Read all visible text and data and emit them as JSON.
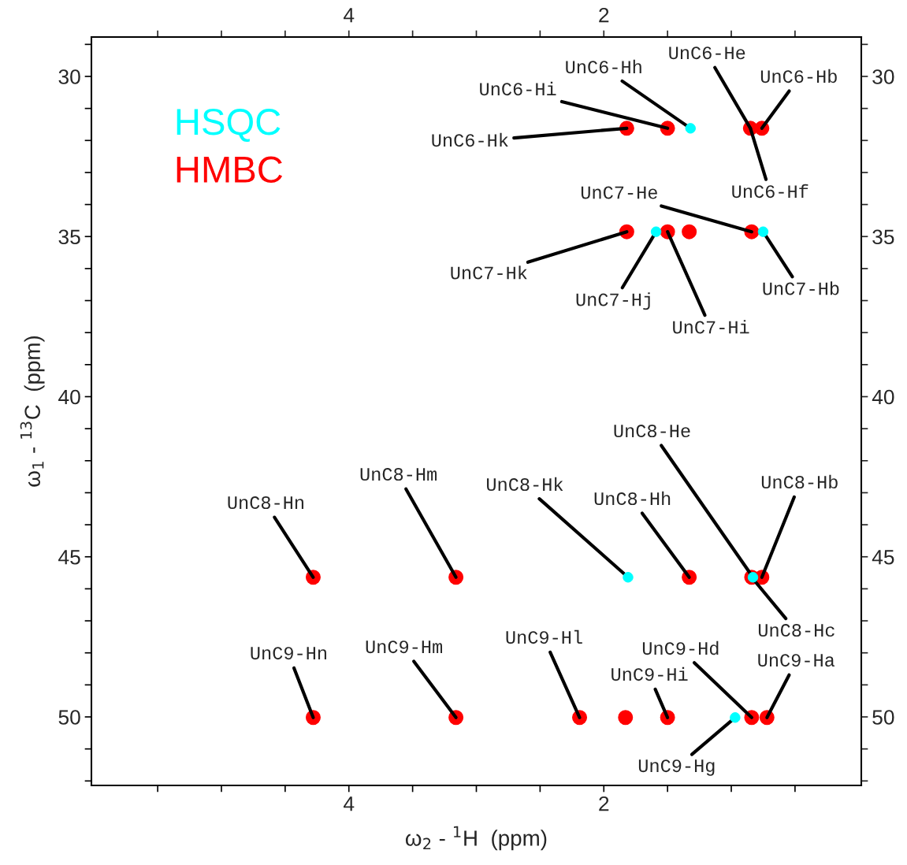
{
  "chart_data": {
    "type": "scatter",
    "xlabel": "ω$_{2}$ - $^{1}$H  (ppm)",
    "ylabel": "ω$_{1}$ - $^{13}$C  (ppm)",
    "xlim": [
      6.02,
      -0.02
    ],
    "ylim": [
      52.14,
      28.77
    ],
    "xticks": [
      {
        "value": 5.5,
        "label": null
      },
      {
        "value": 5,
        "label": null
      },
      {
        "value": 4.5,
        "label": null
      },
      4,
      {
        "value": 3.5,
        "label": null
      },
      {
        "value": 3,
        "label": null
      },
      {
        "value": 2.5,
        "label": null
      },
      2,
      {
        "value": 1.5,
        "label": null
      },
      {
        "value": 1,
        "label": null
      },
      {
        "value": 0.5,
        "label": null
      }
    ],
    "x2lim": [
      6.02,
      -0.02
    ],
    "x2ticks": [
      {
        "value": 5.5,
        "label": null
      },
      {
        "value": 5,
        "label": null
      },
      {
        "value": 4.5,
        "label": null
      },
      4,
      {
        "value": 3.5,
        "label": null
      },
      {
        "value": 3,
        "label": null
      },
      {
        "value": 2.5,
        "label": null
      },
      2,
      {
        "value": 1.5,
        "label": null
      },
      {
        "value": 1,
        "label": null
      },
      {
        "value": 0.5,
        "label": null
      }
    ],
    "yticks": [
      {
        "value": 29,
        "label": null
      },
      30,
      {
        "value": 31,
        "label": null
      },
      {
        "value": 32,
        "label": null
      },
      {
        "value": 33,
        "label": null
      },
      {
        "value": 34,
        "label": null
      },
      35,
      {
        "value": 36,
        "label": null
      },
      {
        "value": 37,
        "label": null
      },
      {
        "value": 38,
        "label": null
      },
      {
        "value": 39,
        "label": null
      },
      40,
      {
        "value": 41,
        "label": null
      },
      {
        "value": 42,
        "label": null
      },
      {
        "value": 43,
        "label": null
      },
      {
        "value": 44,
        "label": null
      },
      45,
      {
        "value": 46,
        "label": null
      },
      {
        "value": 47,
        "label": null
      },
      {
        "value": 48,
        "label": null
      },
      {
        "value": 49,
        "label": null
      },
      50,
      {
        "value": 51,
        "label": null
      },
      {
        "value": 52,
        "label": null
      }
    ],
    "y2lim": [
      52.14,
      28.77
    ],
    "y2ticks": [
      {
        "value": 29,
        "label": null
      },
      30,
      {
        "value": 31,
        "label": null
      },
      {
        "value": 32,
        "label": null
      },
      {
        "value": 33,
        "label": null
      },
      {
        "value": 34,
        "label": null
      },
      35,
      {
        "value": 36,
        "label": null
      },
      {
        "value": 37,
        "label": null
      },
      {
        "value": 38,
        "label": null
      },
      {
        "value": 39,
        "label": null
      },
      40,
      {
        "value": 41,
        "label": null
      },
      {
        "value": 42,
        "label": null
      },
      {
        "value": 43,
        "label": null
      },
      {
        "value": 44,
        "label": null
      },
      45,
      {
        "value": 46,
        "label": null
      },
      {
        "value": 47,
        "label": null
      },
      {
        "value": 48,
        "label": null
      },
      {
        "value": 49,
        "label": null
      },
      50,
      {
        "value": 51,
        "label": null
      },
      {
        "value": 52,
        "label": null
      }
    ],
    "grid": false,
    "legend": "top left",
    "marker": "circle",
    "series": [
      {
        "name": "HSQC",
        "color": "#00ffff",
        "x": [
          1.32,
          1.59,
          0.75,
          1.81,
          0.83,
          0.97
        ],
        "values": [
          31.62,
          34.85,
          34.85,
          45.64,
          45.64,
          50.02
        ]
      },
      {
        "name": "HMBC",
        "color": "#ff0000",
        "x": [
          1.82,
          1.5,
          0.85,
          0.76,
          1.82,
          1.5,
          0.84,
          1.33,
          4.28,
          3.16,
          1.33,
          0.84,
          0.76,
          4.28,
          3.16,
          2.19,
          1.83,
          1.5,
          0.84,
          0.72
        ],
        "values": [
          31.62,
          31.62,
          31.62,
          31.62,
          34.85,
          34.85,
          34.85,
          34.85,
          45.64,
          45.64,
          45.64,
          45.64,
          45.64,
          50.02,
          50.02,
          50.02,
          50.02,
          50.02,
          50.02,
          50.02
        ]
      }
    ],
    "annotations": [
      {
        "text": "UnC6-Hi",
        "x": 1.5,
        "y": 31.62
      },
      {
        "text": "UnC6-Hh",
        "x": 1.32,
        "y": 31.62
      },
      {
        "text": "UnC6-He",
        "x": 0.85,
        "y": 31.62
      },
      {
        "text": "UnC6-Hb",
        "x": 0.76,
        "y": 31.62
      },
      {
        "text": "UnC6-Hk",
        "x": 1.82,
        "y": 31.62
      },
      {
        "text": "UnC6-Hf",
        "x": 0.85,
        "y": 31.62
      },
      {
        "text": "UnC7-He",
        "x": 0.84,
        "y": 34.85
      },
      {
        "text": "UnC7-Hk",
        "x": 1.82,
        "y": 34.85
      },
      {
        "text": "UnC7-Hj",
        "x": 1.59,
        "y": 34.85
      },
      {
        "text": "UnC7-Hi",
        "x": 1.5,
        "y": 34.85
      },
      {
        "text": "UnC7-Hb",
        "x": 0.75,
        "y": 34.85
      },
      {
        "text": "UnC8-Hn",
        "x": 4.28,
        "y": 45.64
      },
      {
        "text": "UnC8-Hm",
        "x": 3.16,
        "y": 45.64
      },
      {
        "text": "UnC8-Hk",
        "x": 1.81,
        "y": 45.64
      },
      {
        "text": "UnC8-Hh",
        "x": 1.33,
        "y": 45.64
      },
      {
        "text": "UnC8-He",
        "x": 0.83,
        "y": 45.64
      },
      {
        "text": "UnC8-Hb",
        "x": 0.76,
        "y": 45.64
      },
      {
        "text": "UnC8-Hc",
        "x": 0.84,
        "y": 45.64
      },
      {
        "text": "UnC9-Hn",
        "x": 4.28,
        "y": 50.02
      },
      {
        "text": "UnC9-Hm",
        "x": 3.16,
        "y": 50.02
      },
      {
        "text": "UnC9-Hl",
        "x": 2.19,
        "y": 50.02
      },
      {
        "text": "UnC9-Hd",
        "x": 0.84,
        "y": 50.02
      },
      {
        "text": "UnC9-Hi",
        "x": 1.5,
        "y": 50.02
      },
      {
        "text": "UnC9-Ha",
        "x": 0.72,
        "y": 50.02
      },
      {
        "text": "UnC9-Hg",
        "x": 0.97,
        "y": 50.02
      }
    ]
  }
}
